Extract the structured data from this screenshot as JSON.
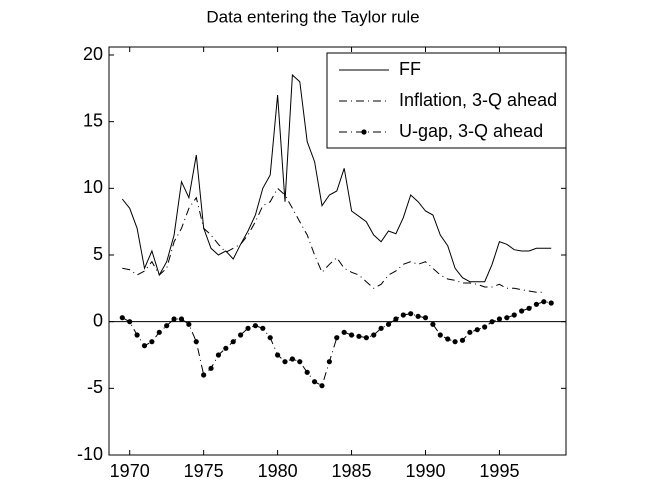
{
  "chart_data": {
    "type": "line",
    "title": "Data entering the Taylor rule",
    "x": [
      1969.5,
      1970,
      1970.5,
      1971,
      1971.5,
      1972,
      1972.5,
      1973,
      1973.5,
      1974,
      1974.5,
      1975,
      1975.5,
      1976,
      1976.5,
      1977,
      1977.5,
      1978,
      1978.5,
      1979,
      1979.5,
      1980,
      1980.5,
      1981,
      1981.5,
      1982,
      1982.5,
      1983,
      1983.5,
      1984,
      1984.5,
      1985,
      1985.5,
      1986,
      1986.5,
      1987,
      1987.5,
      1988,
      1988.5,
      1989,
      1989.5,
      1990,
      1990.5,
      1991,
      1991.5,
      1992,
      1992.5,
      1993,
      1993.5,
      1994,
      1994.5,
      1995,
      1995.5,
      1996,
      1996.5,
      1997,
      1997.5,
      1998,
      1998.5
    ],
    "series": [
      {
        "name": "FF",
        "color": "#000000",
        "linestyle": "solid",
        "marker": false,
        "values": [
          9.2,
          8.5,
          7,
          4,
          5.3,
          3.5,
          4.5,
          6.5,
          10.5,
          9.3,
          12.5,
          7,
          5.5,
          5,
          5.3,
          4.7,
          5.8,
          6.8,
          8,
          10,
          11,
          17,
          9,
          18.5,
          18,
          13.5,
          12,
          8.7,
          9.5,
          9.8,
          11.5,
          8.3,
          7.9,
          7.5,
          6.5,
          6,
          6.8,
          6.6,
          7.8,
          9.5,
          9,
          8.3,
          8,
          6.5,
          5.7,
          4,
          3.3,
          3,
          3,
          3,
          4.3,
          6,
          5.8,
          5.4,
          5.3,
          5.3,
          5.5,
          5.5,
          5.5
        ]
      },
      {
        "name": "Inflation, 3-Q ahead",
        "color": "#000000",
        "linestyle": "dashdot",
        "marker": false,
        "values": [
          4,
          3.9,
          3.5,
          3.8,
          4.5,
          3.5,
          4,
          6,
          7,
          8.5,
          9.3,
          7,
          6.5,
          5.8,
          5.2,
          5.5,
          5.8,
          6.5,
          7.5,
          8.7,
          9,
          10,
          9.5,
          8.5,
          7.5,
          6.5,
          5,
          3.7,
          4.3,
          4.8,
          4,
          3.7,
          3.5,
          3,
          2.5,
          2.8,
          3.5,
          3.8,
          4.3,
          4.5,
          4.3,
          4.5,
          4,
          3.5,
          3.2,
          3.1,
          2.9,
          2.9,
          2.8,
          2.6,
          2.6,
          2.8,
          2.5,
          2.5,
          2.4,
          2.3,
          2.2,
          2.2,
          null
        ]
      },
      {
        "name": "U-gap, 3-Q ahead",
        "color": "#000000",
        "linestyle": "dashdot",
        "marker": true,
        "values": [
          0.3,
          0,
          -1,
          -1.8,
          -1.5,
          -0.8,
          -0.3,
          0.2,
          0.2,
          -0.2,
          -1.5,
          -4,
          -3.5,
          -2.5,
          -2,
          -1.5,
          -1,
          -0.5,
          -0.3,
          -0.5,
          -1.2,
          -2.5,
          -3,
          -2.8,
          -3,
          -3.8,
          -4.5,
          -4.8,
          -3,
          -1.2,
          -0.8,
          -1,
          -1.1,
          -1.2,
          -1,
          -0.5,
          -0.2,
          0.2,
          0.5,
          0.6,
          0.4,
          0.3,
          -0.2,
          -1,
          -1.3,
          -1.5,
          -1.4,
          -0.8,
          -0.6,
          -0.4,
          0,
          0.2,
          0.3,
          0.5,
          0.8,
          1,
          1.3,
          1.5,
          1.4
        ]
      }
    ],
    "xlim": [
      1968.6,
      1999.5
    ],
    "xticks": [
      1970,
      1975,
      1980,
      1985,
      1990,
      1995
    ],
    "ylim": [
      -10,
      20
    ],
    "yticks": [
      -10,
      -5,
      0,
      5,
      10,
      15,
      20
    ],
    "reference_line": 0,
    "legend": "upper right"
  }
}
